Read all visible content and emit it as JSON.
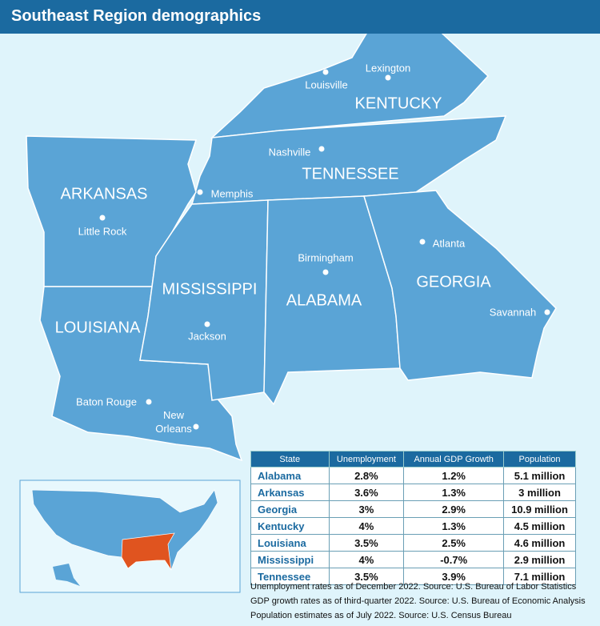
{
  "header": {
    "title": "Southeast Region demographics"
  },
  "states": [
    "KENTUCKY",
    "TENNESSEE",
    "ARKANSAS",
    "MISSISSIPPI",
    "ALABAMA",
    "LOUISIANA",
    "GEORGIA"
  ],
  "cities": [
    "Louisville",
    "Lexington",
    "Nashville",
    "Memphis",
    "Little Rock",
    "Birmingham",
    "Atlanta",
    "Savannah",
    "Jackson",
    "Baton Rouge",
    "New Orleans"
  ],
  "table": {
    "headers": [
      "State",
      "Unemployment",
      "Annual GDP Growth",
      "Population"
    ],
    "rows": [
      [
        "Alabama",
        "2.8%",
        "1.2%",
        "5.1 million"
      ],
      [
        "Arkansas",
        "3.6%",
        "1.3%",
        "3 million"
      ],
      [
        "Georgia",
        "3%",
        "2.9%",
        "10.9 million"
      ],
      [
        "Kentucky",
        "4%",
        "1.3%",
        "4.5 million"
      ],
      [
        "Louisiana",
        "3.5%",
        "2.5%",
        "4.6 million"
      ],
      [
        "Mississippi",
        "4%",
        "-0.7%",
        "2.9 million"
      ],
      [
        "Tennessee",
        "3.5%",
        "3.9%",
        "7.1 million"
      ]
    ]
  },
  "notes": [
    "Unemployment rates as of December 2022. Source: U.S. Bureau of Labor Statistics",
    "GDP growth rates as of third-quarter 2022. Source: U.S. Bureau of Economic Analysis",
    "Population estimates as of July 2022. Source: U.S. Census Bureau"
  ]
}
